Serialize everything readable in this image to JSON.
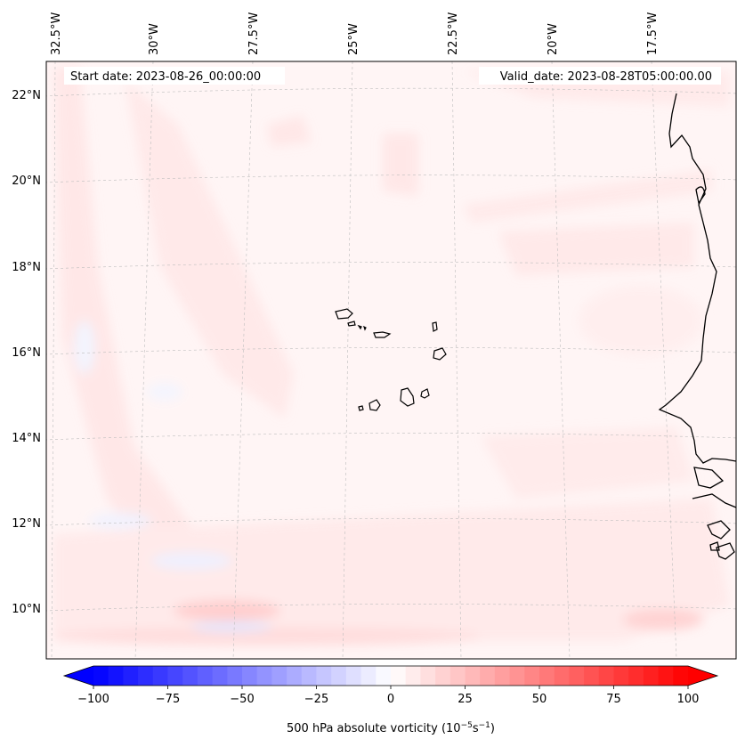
{
  "map": {
    "start_date_label": "Start date: 2023-08-26_00:00:00",
    "valid_date_label": "Valid_date: 2023-08-28T05:00:00.00",
    "lon_labels": [
      "32.5°W",
      "30°W",
      "27.5°W",
      "25°W",
      "22.5°W",
      "20°W",
      "17.5°W"
    ],
    "lat_labels": [
      "22°N",
      "20°N",
      "18°N",
      "16°N",
      "14°N",
      "12°N",
      "10°N"
    ],
    "coastline_color": "#000000",
    "gridlines": true
  },
  "colorbar": {
    "label_main": "500 hPa absolute vorticity (10",
    "label_exp1": "−5",
    "label_mid": "s",
    "label_exp2": "−1",
    "label_end": ")",
    "ticks": [
      "−100",
      "−75",
      "−50",
      "−25",
      "0",
      "25",
      "50",
      "75",
      "100"
    ],
    "min": -100,
    "max": 100,
    "cmap": "bwr",
    "extend": "both"
  },
  "colors": {
    "negative": "#0000ff",
    "neutral": "#ffffff",
    "positive": "#ff0000"
  }
}
